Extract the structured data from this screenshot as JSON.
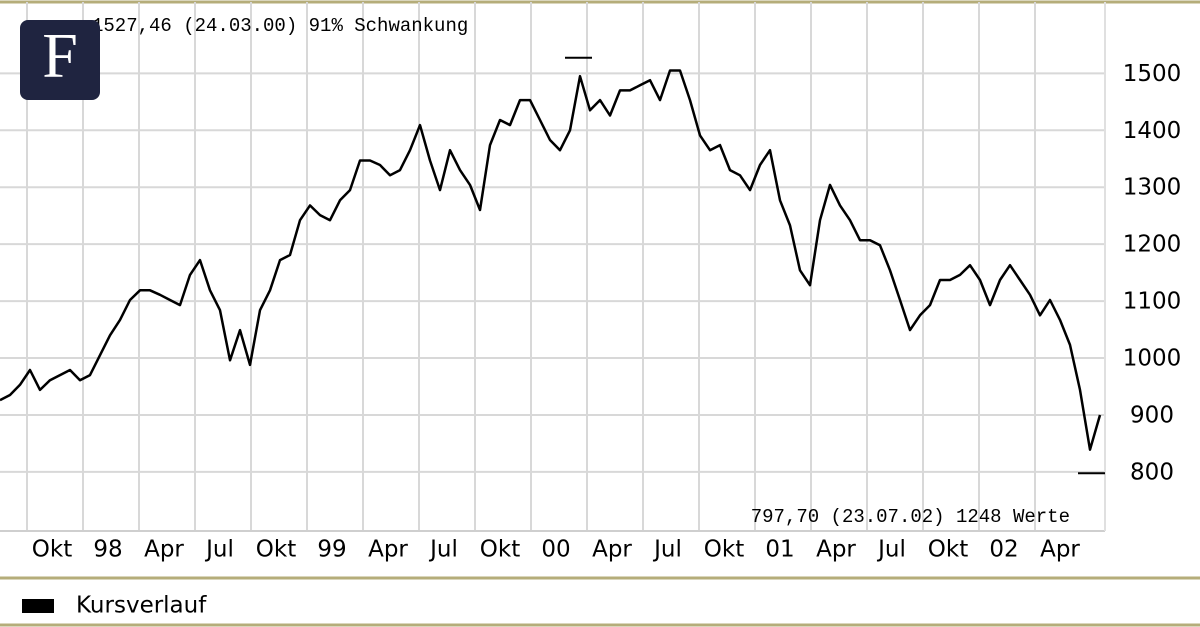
{
  "chart_data": {
    "type": "line",
    "logo": "F",
    "annotation_top": "1527,46 (24.03.00) 91% Schwankung",
    "annotation_bottom": "797,70 (23.07.02) 1248 Werte",
    "high": 1527.46,
    "low": 797.7,
    "series": [
      {
        "name": "Kursverlauf",
        "color": "#000000",
        "values": [
          926,
          935,
          953,
          979,
          944,
          961,
          970,
          979,
          961,
          970,
          1005,
          1040,
          1067,
          1102,
          1119,
          1119,
          1111,
          1102,
          1093,
          1146,
          1172,
          1119,
          1084,
          996,
          1049,
          988,
          1084,
          1119,
          1172,
          1181,
          1242,
          1268,
          1251,
          1242,
          1277,
          1295,
          1347,
          1347,
          1339,
          1321,
          1330,
          1365,
          1409,
          1347,
          1295,
          1365,
          1330,
          1304,
          1260,
          1374,
          1418,
          1409,
          1453,
          1453,
          1418,
          1383,
          1365,
          1400,
          1495,
          1435,
          1453,
          1426,
          1470,
          1470,
          1479,
          1488,
          1453,
          1505,
          1505,
          1453,
          1391,
          1365,
          1374,
          1330,
          1321,
          1295,
          1339,
          1365,
          1277,
          1233,
          1154,
          1128,
          1242,
          1304,
          1268,
          1242,
          1207,
          1207,
          1198,
          1154,
          1102,
          1049,
          1075,
          1093,
          1137,
          1137,
          1146,
          1163,
          1137,
          1093,
          1137,
          1163,
          1137,
          1111,
          1075,
          1102,
          1067,
          1023,
          944,
          839,
          900
        ]
      }
    ],
    "xlim": [
      0,
      110.5
    ],
    "xticks": [
      {
        "value": 2.7,
        "label": "Okt"
      },
      {
        "value": 8.3,
        "label": "98"
      },
      {
        "value": 13.9,
        "label": "Apr"
      },
      {
        "value": 19.5,
        "label": "Jul"
      },
      {
        "value": 25.1,
        "label": "Okt"
      },
      {
        "value": 30.7,
        "label": "99"
      },
      {
        "value": 36.3,
        "label": "Apr"
      },
      {
        "value": 41.9,
        "label": "Jul"
      },
      {
        "value": 47.5,
        "label": "Okt"
      },
      {
        "value": 53.1,
        "label": "00"
      },
      {
        "value": 58.7,
        "label": "Apr"
      },
      {
        "value": 64.3,
        "label": "Jul"
      },
      {
        "value": 69.9,
        "label": "Okt"
      },
      {
        "value": 75.5,
        "label": "01"
      },
      {
        "value": 81.1,
        "label": "Apr"
      },
      {
        "value": 86.7,
        "label": "Jul"
      },
      {
        "value": 92.3,
        "label": "Okt"
      },
      {
        "value": 97.9,
        "label": "02"
      },
      {
        "value": 103.5,
        "label": "Apr"
      }
    ],
    "ylim": [
      698,
      1620
    ],
    "yticks": [
      800,
      900,
      1000,
      1100,
      1200,
      1300,
      1400,
      1500
    ],
    "grid": true
  }
}
